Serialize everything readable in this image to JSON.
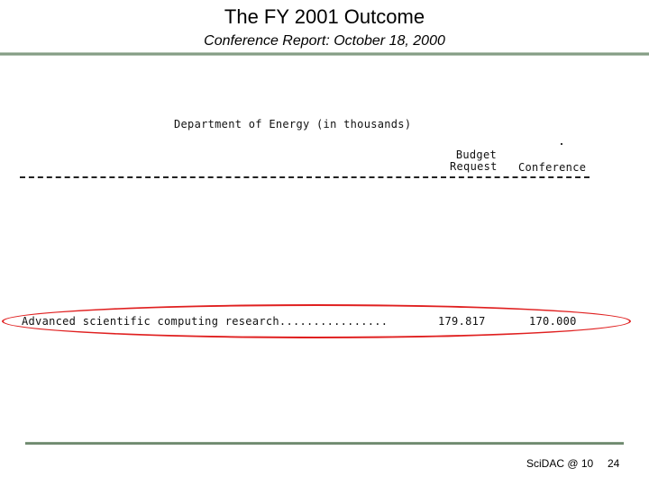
{
  "slide": {
    "title": "The FY 2001 Outcome",
    "subtitle": "Conference Report: October 18, 2000"
  },
  "table": {
    "heading": "Department of Energy (in thousands)",
    "columns": {
      "budget_request_line1": "Budget",
      "budget_request_line2": "Request",
      "conference": "Conference"
    },
    "rows": [
      {
        "label": "Advanced scientific computing research................",
        "budget_request": "179.817",
        "conference": "170.000"
      }
    ]
  },
  "footer": {
    "event": "SciDAC @ 10",
    "page": "24"
  },
  "colors": {
    "accent_rule": "#6e8a6e",
    "highlight": "#e02020"
  }
}
